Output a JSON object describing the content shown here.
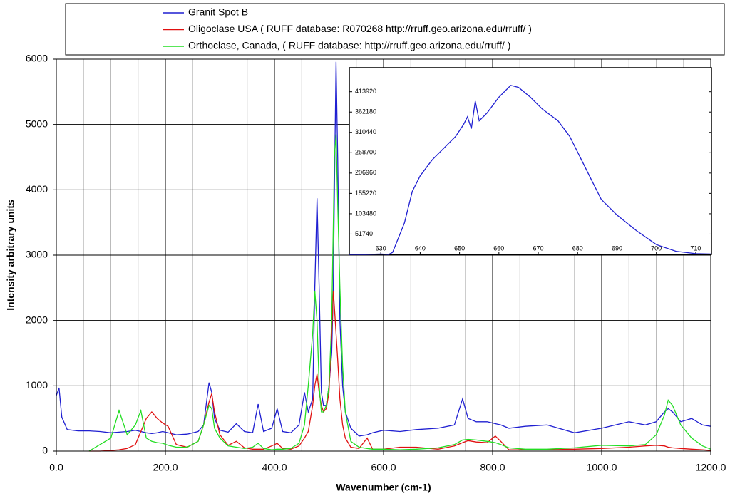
{
  "chart_data": [
    {
      "type": "line",
      "xlabel": "Wavenumber (cm-1)",
      "ylabel": "Intensity arbitrary units",
      "xlim": [
        0,
        1200
      ],
      "ylim": [
        0,
        6000
      ],
      "xticks": [
        {
          "value": 0,
          "label": "0.0"
        },
        {
          "value": 200,
          "label": "200.0"
        },
        {
          "value": 400,
          "label": "400.0"
        },
        {
          "value": 600,
          "label": "600.0"
        },
        {
          "value": 800,
          "label": "800.0"
        },
        {
          "value": 1000,
          "label": "1000.0"
        },
        {
          "value": 1200,
          "label": "1200.0"
        }
      ],
      "minor_xticks": [
        50,
        100,
        150,
        250,
        300,
        350,
        450,
        500,
        550,
        650,
        700,
        750,
        850,
        900,
        950,
        1050,
        1100,
        1150
      ],
      "yticks": [
        0,
        1000,
        2000,
        3000,
        4000,
        5000,
        6000
      ],
      "grid": true,
      "legend": "top",
      "x": [
        0,
        5,
        10,
        20,
        40,
        60,
        80,
        100,
        115,
        130,
        145,
        155,
        165,
        175,
        185,
        195,
        205,
        220,
        240,
        260,
        270,
        280,
        285,
        290,
        300,
        315,
        330,
        345,
        360,
        370,
        380,
        395,
        405,
        415,
        430,
        445,
        455,
        462,
        470,
        474,
        478,
        482,
        486,
        490,
        495,
        500,
        505,
        508,
        510,
        513,
        516,
        520,
        525,
        530,
        540,
        555,
        570,
        580,
        600,
        630,
        660,
        700,
        730,
        745,
        755,
        770,
        790,
        805,
        815,
        830,
        860,
        900,
        950,
        1000,
        1050,
        1080,
        1100,
        1115,
        1122,
        1130,
        1145,
        1165,
        1185,
        1200
      ],
      "series": [
        {
          "name": "Granit Spot B",
          "color": "#1f1fd1",
          "values": [
            850,
            970,
            520,
            330,
            310,
            310,
            300,
            280,
            290,
            300,
            320,
            300,
            280,
            270,
            280,
            300,
            280,
            250,
            260,
            300,
            400,
            1050,
            900,
            500,
            320,
            290,
            420,
            300,
            280,
            720,
            300,
            350,
            650,
            300,
            280,
            400,
            900,
            600,
            800,
            2500,
            3870,
            2500,
            900,
            700,
            700,
            1000,
            1500,
            2500,
            4000,
            5960,
            4500,
            2000,
            1000,
            600,
            350,
            230,
            250,
            280,
            320,
            300,
            330,
            350,
            400,
            800,
            500,
            450,
            450,
            420,
            400,
            350,
            380,
            400,
            280,
            350,
            450,
            400,
            450,
            600,
            650,
            600,
            450,
            500,
            400,
            380
          ]
        },
        {
          "name": "Oligoclase USA ( RUFF database: R070268  http://rruff.geo.arizona.edu/rruff/ )",
          "color": "#e01010",
          "values": [
            null,
            null,
            null,
            null,
            null,
            0,
            0,
            10,
            20,
            40,
            100,
            300,
            500,
            600,
            500,
            430,
            380,
            100,
            60,
            150,
            400,
            750,
            880,
            600,
            250,
            90,
            150,
            50,
            30,
            30,
            30,
            80,
            120,
            40,
            30,
            80,
            200,
            300,
            700,
            1000,
            1180,
            900,
            700,
            600,
            650,
            900,
            1800,
            2450,
            2200,
            1800,
            1400,
            800,
            400,
            200,
            60,
            40,
            200,
            30,
            30,
            60,
            60,
            30,
            80,
            130,
            160,
            140,
            130,
            230,
            150,
            20,
            20,
            20,
            30,
            40,
            60,
            80,
            90,
            80,
            60,
            50,
            40,
            30,
            20,
            10
          ]
        },
        {
          "name": "Orthoclase, Canada, ( RUFF database:   http://rruff.geo.arizona.edu/rruff/ )",
          "color": "#22dd22",
          "values": [
            null,
            null,
            null,
            null,
            null,
            0,
            100,
            200,
            620,
            250,
            400,
            620,
            200,
            150,
            130,
            120,
            90,
            60,
            60,
            150,
            400,
            700,
            650,
            350,
            200,
            80,
            60,
            40,
            60,
            120,
            40,
            20,
            30,
            30,
            40,
            120,
            400,
            1000,
            1800,
            2450,
            2000,
            1000,
            600,
            600,
            700,
            1000,
            2000,
            3500,
            4500,
            4850,
            3800,
            2500,
            1300,
            600,
            150,
            60,
            40,
            30,
            30,
            20,
            30,
            50,
            100,
            170,
            180,
            170,
            150,
            130,
            100,
            50,
            30,
            30,
            50,
            90,
            80,
            100,
            250,
            550,
            780,
            700,
            400,
            200,
            80,
            30
          ]
        }
      ]
    },
    {
      "type": "line",
      "xlim": [
        622,
        714
      ],
      "ylim": [
        0,
        475000
      ],
      "xticks": [
        630,
        640,
        650,
        660,
        670,
        680,
        690,
        700,
        710
      ],
      "yticks": [
        51740,
        103480,
        155220,
        206960,
        258700,
        310440,
        362180,
        413920
      ],
      "x": [
        622,
        626,
        630,
        632,
        633,
        636,
        638,
        640,
        643,
        646,
        649,
        651,
        652,
        653,
        654,
        655,
        657,
        660,
        663,
        665,
        668,
        671,
        675,
        678,
        680,
        683,
        686,
        690,
        695,
        700,
        705,
        710,
        714
      ],
      "series": [
        {
          "color": "#1f1fd1",
          "values": [
            0,
            0,
            1000,
            0,
            5000,
            80000,
            160000,
            200000,
            240000,
            270000,
            300000,
            330000,
            350000,
            320000,
            390000,
            340000,
            360000,
            400000,
            430000,
            425000,
            400000,
            370000,
            340000,
            300000,
            260000,
            200000,
            140000,
            100000,
            60000,
            25000,
            8000,
            2000,
            1000
          ]
        }
      ]
    }
  ]
}
